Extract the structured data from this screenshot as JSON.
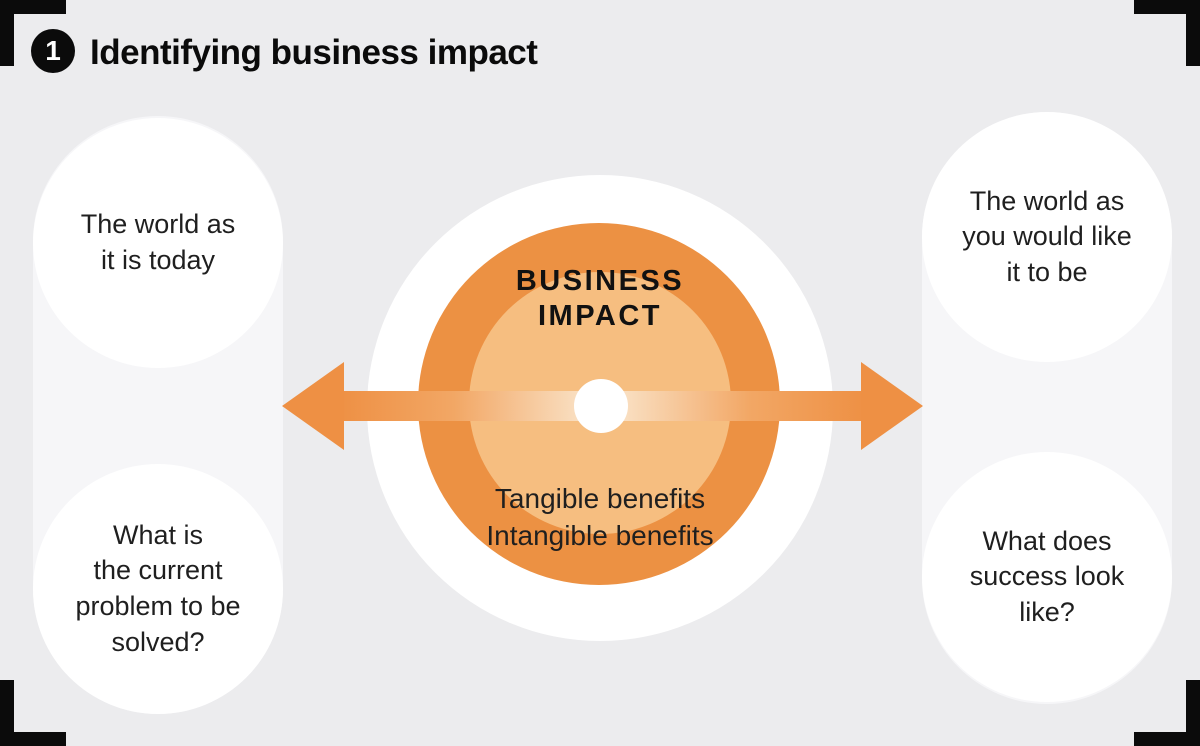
{
  "header": {
    "step_number": "1",
    "title": "Identifying business impact"
  },
  "left_column": {
    "top_circle": "The world as\nit is today",
    "bottom_circle": "What is\nthe current\nproblem to be\nsolved?"
  },
  "right_column": {
    "top_circle": "The world as\nyou would like\nit to be",
    "bottom_circle": "What does\nsuccess look\nlike?"
  },
  "center": {
    "label": "BUSINESS\nIMPACT",
    "benefits": "Tangible benefits\nIntangible benefits"
  },
  "icons": {
    "step_badge": "numbered-circle-1",
    "corners": "corner-bracket-frame",
    "arrow": "double-headed-horizontal-arrow"
  },
  "colors": {
    "background": "#ECECEE",
    "panel": "#F6F6F8",
    "circle_white": "#FFFFFF",
    "orange": "#EC9143",
    "orange_light": "#F6BE80",
    "arrow_orange": "#EE9044",
    "arrow_fade": "#FBEBDB",
    "ink": "#0B0B0B",
    "text": "#1F1F1F"
  }
}
